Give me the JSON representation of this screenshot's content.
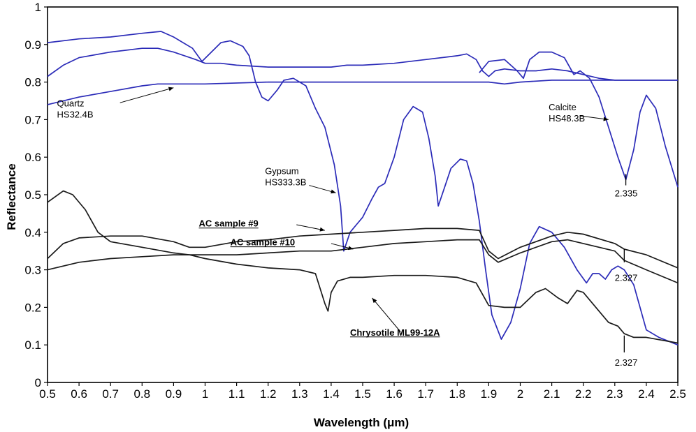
{
  "chart_data": {
    "type": "line",
    "title": "",
    "xlabel": "Wavelength (μm)",
    "ylabel": "Reflectance",
    "xlim": [
      0.5,
      2.5
    ],
    "ylim": [
      0,
      1
    ],
    "x_ticks": [
      0.5,
      0.6,
      0.7,
      0.8,
      0.9,
      1,
      1.1,
      1.2,
      1.3,
      1.4,
      1.5,
      1.6,
      1.7,
      1.8,
      1.9,
      2,
      2.1,
      2.2,
      2.3,
      2.4,
      2.5
    ],
    "x_tick_labels": [
      "0.5",
      "0.6",
      "0.7",
      "0.8",
      "0.9",
      "1",
      "1.1",
      "1.2",
      "1.3",
      "1.4",
      "1.5",
      "1.6",
      "1.7",
      "1.8",
      "1.9",
      "2",
      "2.1",
      "2.2",
      "2.3",
      "2.4",
      "2.5"
    ],
    "y_ticks": [
      0,
      0.1,
      0.2,
      0.3,
      0.4,
      0.5,
      0.6,
      0.7,
      0.8,
      0.9,
      1
    ],
    "y_tick_labels": [
      "0",
      "0.1",
      "0.2",
      "0.3",
      "0.4",
      "0.5",
      "0.6",
      "0.7",
      "0.8",
      "0.9",
      "1"
    ],
    "grid": false,
    "colors": {
      "blue": "#2b2bb8",
      "black": "#1a1a1a"
    },
    "series": [
      {
        "color": "#2b2bb8",
        "points": [
          [
            0.5,
            0.74
          ],
          [
            0.6,
            0.76
          ],
          [
            0.7,
            0.775
          ],
          [
            0.8,
            0.79
          ],
          [
            0.85,
            0.795
          ],
          [
            1.0,
            0.795
          ],
          [
            1.2,
            0.8
          ],
          [
            1.4,
            0.8
          ],
          [
            1.6,
            0.8
          ],
          [
            1.8,
            0.8
          ],
          [
            1.9,
            0.8
          ],
          [
            1.95,
            0.795
          ],
          [
            2.0,
            0.8
          ],
          [
            2.1,
            0.805
          ],
          [
            2.2,
            0.805
          ],
          [
            2.3,
            0.805
          ],
          [
            2.5,
            0.805
          ]
        ]
      },
      {
        "color": "#2b2bb8",
        "points": [
          [
            0.5,
            0.815
          ],
          [
            0.55,
            0.845
          ],
          [
            0.6,
            0.865
          ],
          [
            0.7,
            0.88
          ],
          [
            0.8,
            0.89
          ],
          [
            0.85,
            0.89
          ],
          [
            0.9,
            0.88
          ],
          [
            0.97,
            0.86
          ],
          [
            1.0,
            0.85
          ],
          [
            1.05,
            0.85
          ],
          [
            1.1,
            0.845
          ],
          [
            1.2,
            0.84
          ],
          [
            1.3,
            0.84
          ],
          [
            1.4,
            0.84
          ],
          [
            1.45,
            0.845
          ],
          [
            1.5,
            0.845
          ],
          [
            1.6,
            0.85
          ],
          [
            1.7,
            0.86
          ],
          [
            1.8,
            0.87
          ],
          [
            1.83,
            0.875
          ],
          [
            1.86,
            0.86
          ],
          [
            1.88,
            0.83
          ],
          [
            1.9,
            0.815
          ],
          [
            1.92,
            0.83
          ],
          [
            1.95,
            0.835
          ],
          [
            2.0,
            0.83
          ],
          [
            2.05,
            0.83
          ],
          [
            2.1,
            0.835
          ],
          [
            2.15,
            0.83
          ],
          [
            2.2,
            0.82
          ],
          [
            2.25,
            0.81
          ],
          [
            2.3,
            0.805
          ],
          [
            2.5,
            0.805
          ]
        ]
      },
      {
        "color": "#2b2bb8",
        "points": [
          [
            0.5,
            0.905
          ],
          [
            0.6,
            0.915
          ],
          [
            0.7,
            0.92
          ],
          [
            0.8,
            0.93
          ],
          [
            0.86,
            0.935
          ],
          [
            0.9,
            0.92
          ],
          [
            0.96,
            0.89
          ],
          [
            0.99,
            0.855
          ],
          [
            1.02,
            0.88
          ],
          [
            1.05,
            0.905
          ],
          [
            1.08,
            0.91
          ],
          [
            1.12,
            0.895
          ],
          [
            1.14,
            0.87
          ],
          [
            1.16,
            0.8
          ],
          [
            1.18,
            0.76
          ],
          [
            1.2,
            0.75
          ],
          [
            1.23,
            0.78
          ],
          [
            1.25,
            0.805
          ],
          [
            1.28,
            0.81
          ],
          [
            1.32,
            0.79
          ],
          [
            1.35,
            0.73
          ],
          [
            1.38,
            0.68
          ],
          [
            1.41,
            0.58
          ],
          [
            1.43,
            0.47
          ],
          [
            1.44,
            0.35
          ],
          [
            1.46,
            0.4
          ],
          [
            1.48,
            0.42
          ],
          [
            1.5,
            0.44
          ],
          [
            1.53,
            0.49
          ],
          [
            1.55,
            0.52
          ],
          [
            1.57,
            0.53
          ],
          [
            1.6,
            0.6
          ],
          [
            1.63,
            0.7
          ],
          [
            1.66,
            0.735
          ],
          [
            1.69,
            0.72
          ],
          [
            1.71,
            0.65
          ],
          [
            1.73,
            0.55
          ],
          [
            1.74,
            0.47
          ],
          [
            1.76,
            0.52
          ],
          [
            1.78,
            0.57
          ],
          [
            1.81,
            0.595
          ],
          [
            1.83,
            0.59
          ],
          [
            1.85,
            0.53
          ],
          [
            1.87,
            0.43
          ],
          [
            1.89,
            0.3
          ],
          [
            1.91,
            0.18
          ],
          [
            1.94,
            0.115
          ],
          [
            1.97,
            0.16
          ],
          [
            2.0,
            0.25
          ],
          [
            2.03,
            0.37
          ],
          [
            2.06,
            0.415
          ],
          [
            2.1,
            0.4
          ],
          [
            2.14,
            0.36
          ],
          [
            2.18,
            0.3
          ],
          [
            2.21,
            0.265
          ],
          [
            2.23,
            0.29
          ],
          [
            2.25,
            0.29
          ],
          [
            2.27,
            0.275
          ],
          [
            2.29,
            0.3
          ],
          [
            2.31,
            0.31
          ],
          [
            2.33,
            0.3
          ],
          [
            2.36,
            0.26
          ],
          [
            2.38,
            0.2
          ],
          [
            2.4,
            0.14
          ],
          [
            2.44,
            0.12
          ],
          [
            2.5,
            0.1
          ]
        ]
      },
      {
        "color": "#2b2bb8",
        "points": [
          [
            1.87,
            0.825
          ],
          [
            1.9,
            0.855
          ],
          [
            1.95,
            0.86
          ],
          [
            1.99,
            0.83
          ],
          [
            2.01,
            0.81
          ],
          [
            2.03,
            0.86
          ],
          [
            2.06,
            0.88
          ],
          [
            2.1,
            0.88
          ],
          [
            2.14,
            0.865
          ],
          [
            2.17,
            0.82
          ],
          [
            2.19,
            0.83
          ],
          [
            2.22,
            0.81
          ],
          [
            2.25,
            0.76
          ],
          [
            2.28,
            0.68
          ],
          [
            2.31,
            0.6
          ],
          [
            2.335,
            0.54
          ],
          [
            2.36,
            0.62
          ],
          [
            2.38,
            0.72
          ],
          [
            2.4,
            0.765
          ],
          [
            2.43,
            0.73
          ],
          [
            2.46,
            0.63
          ],
          [
            2.5,
            0.52
          ]
        ]
      },
      {
        "color": "#1a1a1a",
        "points": [
          [
            0.5,
            0.33
          ],
          [
            0.55,
            0.37
          ],
          [
            0.6,
            0.385
          ],
          [
            0.7,
            0.39
          ],
          [
            0.8,
            0.39
          ],
          [
            0.9,
            0.375
          ],
          [
            0.95,
            0.36
          ],
          [
            1.0,
            0.36
          ],
          [
            1.1,
            0.375
          ],
          [
            1.2,
            0.38
          ],
          [
            1.3,
            0.39
          ],
          [
            1.4,
            0.395
          ],
          [
            1.5,
            0.4
          ],
          [
            1.6,
            0.405
          ],
          [
            1.7,
            0.41
          ],
          [
            1.8,
            0.41
          ],
          [
            1.87,
            0.405
          ],
          [
            1.9,
            0.35
          ],
          [
            1.93,
            0.33
          ],
          [
            2.0,
            0.36
          ],
          [
            2.1,
            0.39
          ],
          [
            2.15,
            0.4
          ],
          [
            2.2,
            0.395
          ],
          [
            2.3,
            0.37
          ],
          [
            2.33,
            0.355
          ],
          [
            2.4,
            0.34
          ],
          [
            2.5,
            0.305
          ]
        ]
      },
      {
        "color": "#1a1a1a",
        "points": [
          [
            0.5,
            0.3
          ],
          [
            0.6,
            0.32
          ],
          [
            0.7,
            0.33
          ],
          [
            0.8,
            0.335
          ],
          [
            0.9,
            0.34
          ],
          [
            1.0,
            0.34
          ],
          [
            1.1,
            0.34
          ],
          [
            1.2,
            0.345
          ],
          [
            1.3,
            0.35
          ],
          [
            1.4,
            0.35
          ],
          [
            1.5,
            0.36
          ],
          [
            1.6,
            0.37
          ],
          [
            1.7,
            0.375
          ],
          [
            1.8,
            0.38
          ],
          [
            1.87,
            0.38
          ],
          [
            1.9,
            0.34
          ],
          [
            1.93,
            0.32
          ],
          [
            2.0,
            0.345
          ],
          [
            2.1,
            0.375
          ],
          [
            2.15,
            0.38
          ],
          [
            2.2,
            0.37
          ],
          [
            2.3,
            0.35
          ],
          [
            2.33,
            0.325
          ],
          [
            2.4,
            0.3
          ],
          [
            2.5,
            0.265
          ]
        ]
      },
      {
        "color": "#1a1a1a",
        "points": [
          [
            0.5,
            0.48
          ],
          [
            0.55,
            0.51
          ],
          [
            0.58,
            0.5
          ],
          [
            0.62,
            0.46
          ],
          [
            0.66,
            0.4
          ],
          [
            0.7,
            0.375
          ],
          [
            0.8,
            0.36
          ],
          [
            0.9,
            0.345
          ],
          [
            0.95,
            0.34
          ],
          [
            1.0,
            0.33
          ],
          [
            1.1,
            0.315
          ],
          [
            1.2,
            0.305
          ],
          [
            1.3,
            0.3
          ],
          [
            1.35,
            0.29
          ],
          [
            1.38,
            0.21
          ],
          [
            1.39,
            0.19
          ],
          [
            1.4,
            0.24
          ],
          [
            1.42,
            0.27
          ],
          [
            1.46,
            0.28
          ],
          [
            1.5,
            0.28
          ],
          [
            1.6,
            0.285
          ],
          [
            1.7,
            0.285
          ],
          [
            1.8,
            0.28
          ],
          [
            1.86,
            0.265
          ],
          [
            1.9,
            0.205
          ],
          [
            1.95,
            0.2
          ],
          [
            2.0,
            0.2
          ],
          [
            2.05,
            0.24
          ],
          [
            2.08,
            0.25
          ],
          [
            2.12,
            0.225
          ],
          [
            2.15,
            0.21
          ],
          [
            2.18,
            0.245
          ],
          [
            2.2,
            0.24
          ],
          [
            2.24,
            0.2
          ],
          [
            2.28,
            0.16
          ],
          [
            2.31,
            0.15
          ],
          [
            2.33,
            0.13
          ],
          [
            2.36,
            0.12
          ],
          [
            2.4,
            0.12
          ],
          [
            2.5,
            0.105
          ]
        ]
      }
    ],
    "annotations": [
      {
        "text": "Quartz",
        "x": 0.53,
        "y": 0.735,
        "bold": false
      },
      {
        "text": "HS32.4B",
        "x": 0.53,
        "y": 0.705,
        "bold": false
      },
      {
        "text": "Calcite",
        "x": 2.09,
        "y": 0.725,
        "bold": false
      },
      {
        "text": "HS48.3B",
        "x": 2.09,
        "y": 0.695,
        "bold": false
      },
      {
        "text": "Gypsum",
        "x": 1.19,
        "y": 0.555,
        "bold": false
      },
      {
        "text": "HS333.3B",
        "x": 1.19,
        "y": 0.525,
        "bold": false
      },
      {
        "text": "2.335",
        "x": 2.3,
        "y": 0.495,
        "bold": false
      },
      {
        "text": "AC sample #9",
        "x": 0.98,
        "y": 0.415,
        "bold": true
      },
      {
        "text": "AC sample #10",
        "x": 1.08,
        "y": 0.365,
        "bold": true
      },
      {
        "text": "2.327",
        "x": 2.3,
        "y": 0.27,
        "bold": false
      },
      {
        "text": "Chrysotile ML99-12A",
        "x": 1.46,
        "y": 0.125,
        "bold": true
      },
      {
        "text": "2.327",
        "x": 2.3,
        "y": 0.045,
        "bold": false
      }
    ],
    "arrows": [
      {
        "from": [
          0.73,
          0.745
        ],
        "to": [
          0.9,
          0.785
        ]
      },
      {
        "from": [
          2.19,
          0.71
        ],
        "to": [
          2.28,
          0.7
        ]
      },
      {
        "from": [
          1.33,
          0.525
        ],
        "to": [
          1.415,
          0.505
        ]
      },
      {
        "from": [
          1.29,
          0.42
        ],
        "to": [
          1.38,
          0.405
        ]
      },
      {
        "from": [
          1.4,
          0.37
        ],
        "to": [
          1.47,
          0.355
        ]
      },
      {
        "from": [
          1.62,
          0.135
        ],
        "to": [
          1.53,
          0.225
        ]
      }
    ],
    "markers": [
      {
        "x": 2.335,
        "y0": 0.525,
        "y1": 0.555
      },
      {
        "x": 2.33,
        "y0": 0.32,
        "y1": 0.355
      },
      {
        "x": 2.33,
        "y0": 0.08,
        "y1": 0.125
      }
    ]
  }
}
